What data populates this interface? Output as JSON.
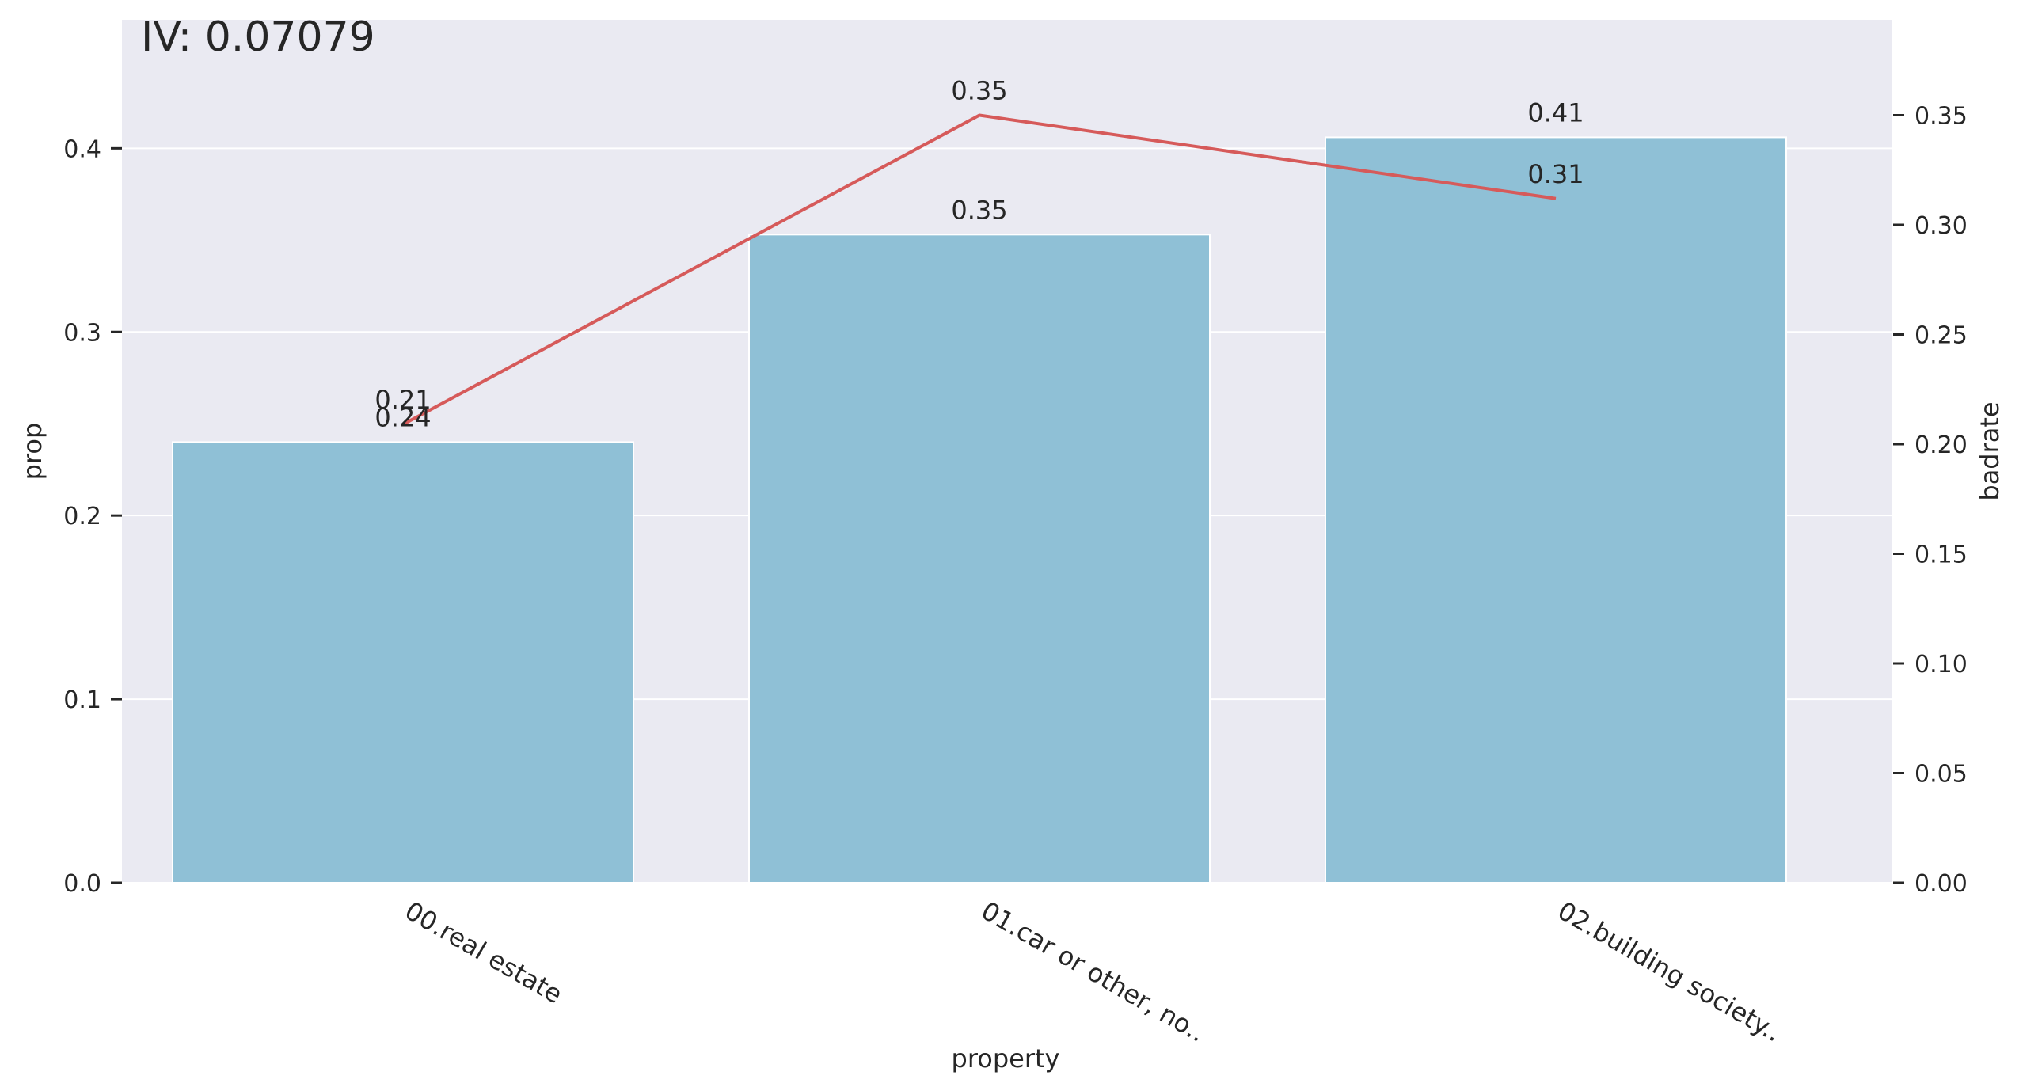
{
  "chart_data": {
    "type": "bar",
    "title": "IV: 0.07079",
    "categories": [
      "00.real estate",
      "01.car or other, no..",
      "02.building society.."
    ],
    "series": [
      {
        "name": "prop",
        "type": "bar",
        "axis": "left",
        "values": [
          0.24,
          0.353,
          0.406
        ],
        "labels": [
          "0.24",
          "0.35",
          "0.41"
        ]
      },
      {
        "name": "badrate",
        "type": "line",
        "axis": "right",
        "values": [
          0.209,
          0.35,
          0.312
        ],
        "labels": [
          "0.21",
          "0.35",
          "0.31"
        ]
      }
    ],
    "xlabel": "property",
    "ylabel": "prop",
    "y2label": "badrate",
    "ylim": [
      0,
      0.47
    ],
    "y2lim": [
      0,
      0.3935
    ],
    "yticks": [
      "0.0",
      "0.1",
      "0.2",
      "0.3",
      "0.4"
    ],
    "yticks_values": [
      0,
      0.1,
      0.2,
      0.3,
      0.4
    ],
    "y2ticks": [
      "0.00",
      "0.05",
      "0.10",
      "0.15",
      "0.20",
      "0.25",
      "0.30",
      "0.35"
    ],
    "y2ticks_values": [
      0,
      0.05,
      0.1,
      0.15,
      0.2,
      0.25,
      0.3,
      0.35
    ],
    "grid": true,
    "colors": {
      "plot_background": "#eaeaf2",
      "grid": "#ffffff",
      "bar_fill": "#8fc0d6",
      "bar_edge": "#ffffff",
      "line": "#d65a5a",
      "text": "#262626"
    }
  }
}
